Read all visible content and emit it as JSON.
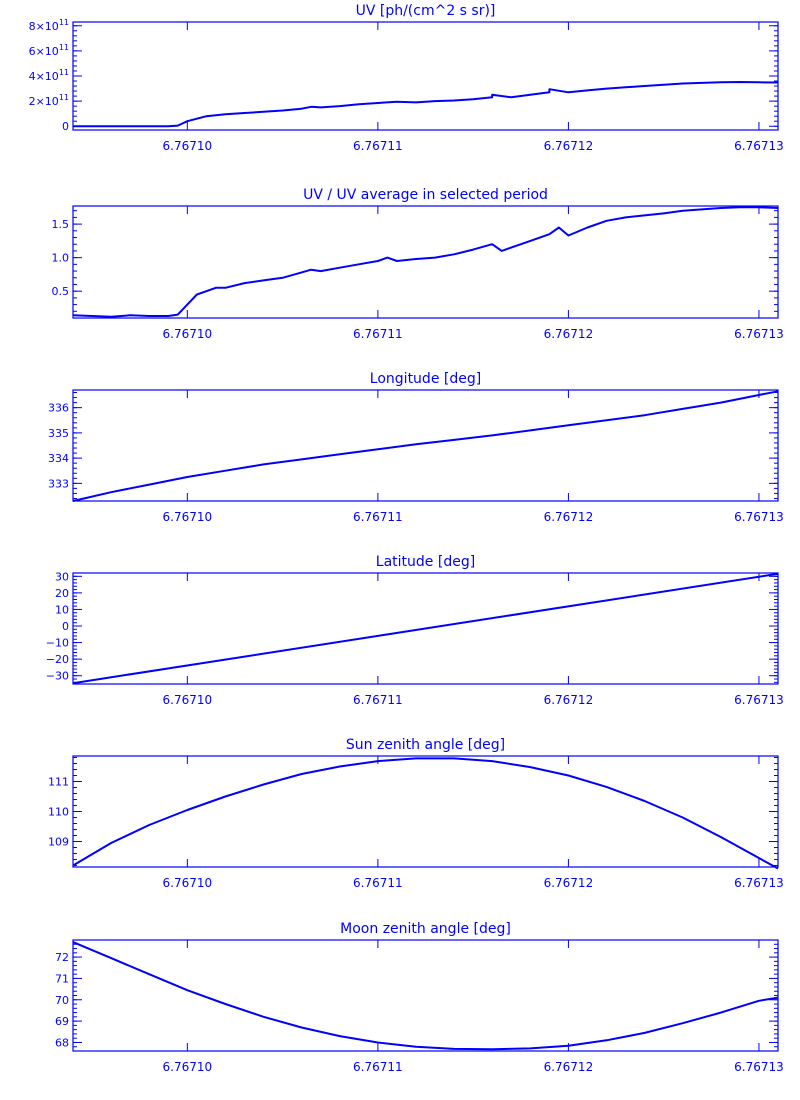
{
  "style": {
    "color": "#0000ff",
    "background": "#ffffff"
  },
  "chart_data": [
    {
      "type": "line",
      "title": "UV [ph/(cm^2 s sr)]",
      "x_ticks": [
        6.7671,
        6.76711,
        6.76712,
        6.76713
      ],
      "x_tick_labels": [
        "6.76710",
        "6.76711",
        "6.76712",
        "6.76713"
      ],
      "xlim": [
        6.767094,
        6.767131
      ],
      "ylim": [
        -30000000000.0,
        830000000000.0
      ],
      "y_ticks": [
        0,
        200000000000.0,
        400000000000.0,
        600000000000.0,
        800000000000.0
      ],
      "y_tick_labels": [
        {
          "base": "0",
          "exp": ""
        },
        {
          "base": "2×10",
          "exp": "11"
        },
        {
          "base": "4×10",
          "exp": "11"
        },
        {
          "base": "6×10",
          "exp": "11"
        },
        {
          "base": "8×10",
          "exp": "11"
        }
      ],
      "series": [
        {
          "x": [
            6.767094,
            6.767096,
            6.767098,
            6.767099,
            6.7670995,
            6.7671,
            6.767101,
            6.767102,
            6.767103,
            6.767104,
            6.767105,
            6.767106,
            6.7671065,
            6.767107,
            6.767108,
            6.767109,
            6.76711,
            6.767111,
            6.767112,
            6.767113,
            6.767114,
            6.767115,
            6.767116,
            6.767116,
            6.767117,
            6.767118,
            6.767119,
            6.767119,
            6.76712,
            6.767121,
            6.767122,
            6.767123,
            6.767124,
            6.767125,
            6.767126,
            6.767127,
            6.767128,
            6.767129,
            6.76713,
            6.767131
          ],
          "y": [
            0,
            0,
            0,
            0,
            5000000000.0,
            40000000000.0,
            80000000000.0,
            95000000000.0,
            105000000000.0,
            115000000000.0,
            125000000000.0,
            140000000000.0,
            155000000000.0,
            150000000000.0,
            160000000000.0,
            175000000000.0,
            185000000000.0,
            195000000000.0,
            190000000000.0,
            200000000000.0,
            205000000000.0,
            215000000000.0,
            230000000000.0,
            250000000000.0,
            230000000000.0,
            250000000000.0,
            270000000000.0,
            295000000000.0,
            270000000000.0,
            285000000000.0,
            300000000000.0,
            310000000000.0,
            320000000000.0,
            330000000000.0,
            340000000000.0,
            345000000000.0,
            350000000000.0,
            352000000000.0,
            350000000000.0,
            348000000000.0
          ]
        }
      ]
    },
    {
      "type": "line",
      "title": "UV / UV average in selected period",
      "x_ticks": [
        6.7671,
        6.76711,
        6.76712,
        6.76713
      ],
      "x_tick_labels": [
        "6.76710",
        "6.76711",
        "6.76712",
        "6.76713"
      ],
      "xlim": [
        6.767094,
        6.767131
      ],
      "ylim": [
        0.1,
        1.77
      ],
      "y_ticks": [
        0.5,
        1.0,
        1.5
      ],
      "y_tick_labels": [
        "0.5",
        "1.0",
        "1.5"
      ],
      "series": [
        {
          "x": [
            6.767094,
            6.767095,
            6.767096,
            6.767097,
            6.767098,
            6.767099,
            6.7670995,
            6.7671,
            6.7671005,
            6.767101,
            6.7671015,
            6.767102,
            6.767103,
            6.767104,
            6.767105,
            6.767106,
            6.7671065,
            6.767107,
            6.767108,
            6.767109,
            6.76711,
            6.7671105,
            6.767111,
            6.767112,
            6.767113,
            6.767114,
            6.767115,
            6.767116,
            6.7671165,
            6.767117,
            6.767118,
            6.767119,
            6.7671195,
            6.76712,
            6.767121,
            6.767122,
            6.767123,
            6.767124,
            6.767125,
            6.767126,
            6.767127,
            6.767128,
            6.767129,
            6.76713,
            6.767131
          ],
          "y": [
            0.14,
            0.13,
            0.12,
            0.14,
            0.13,
            0.13,
            0.15,
            0.3,
            0.45,
            0.5,
            0.55,
            0.55,
            0.62,
            0.66,
            0.7,
            0.78,
            0.82,
            0.8,
            0.85,
            0.9,
            0.95,
            1.0,
            0.95,
            0.98,
            1.0,
            1.05,
            1.12,
            1.2,
            1.1,
            1.15,
            1.25,
            1.35,
            1.45,
            1.33,
            1.45,
            1.55,
            1.6,
            1.63,
            1.66,
            1.7,
            1.72,
            1.74,
            1.75,
            1.75,
            1.74
          ]
        }
      ]
    },
    {
      "type": "line",
      "title": "Longitude [deg]",
      "x_ticks": [
        6.7671,
        6.76711,
        6.76712,
        6.76713
      ],
      "x_tick_labels": [
        "6.76710",
        "6.76711",
        "6.76712",
        "6.76713"
      ],
      "xlim": [
        6.767094,
        6.767131
      ],
      "ylim": [
        332.3,
        336.7
      ],
      "y_ticks": [
        333,
        334,
        335,
        336
      ],
      "y_tick_labels": [
        "333",
        "334",
        "335",
        "336"
      ],
      "series": [
        {
          "x": [
            6.767094,
            6.767096,
            6.767098,
            6.7671,
            6.767102,
            6.767104,
            6.767106,
            6.767108,
            6.76711,
            6.767112,
            6.767114,
            6.767116,
            6.767118,
            6.76712,
            6.767122,
            6.767124,
            6.767126,
            6.767128,
            6.76713,
            6.767131
          ],
          "y": [
            332.3,
            332.65,
            332.95,
            333.25,
            333.5,
            333.75,
            333.95,
            334.15,
            334.35,
            334.55,
            334.72,
            334.9,
            335.1,
            335.3,
            335.5,
            335.7,
            335.95,
            336.2,
            336.5,
            336.65
          ]
        }
      ]
    },
    {
      "type": "line",
      "title": "Latitude [deg]",
      "x_ticks": [
        6.7671,
        6.76711,
        6.76712,
        6.76713
      ],
      "x_tick_labels": [
        "6.76710",
        "6.76711",
        "6.76712",
        "6.76713"
      ],
      "xlim": [
        6.767094,
        6.767131
      ],
      "ylim": [
        -35,
        32
      ],
      "y_ticks": [
        -30,
        -20,
        -10,
        0,
        10,
        20,
        30
      ],
      "y_tick_labels": [
        "−30",
        "−20",
        "−10",
        "0",
        "10",
        "20",
        "30"
      ],
      "series": [
        {
          "x": [
            6.767094,
            6.767131
          ],
          "y": [
            -34.5,
            31.5
          ]
        }
      ]
    },
    {
      "type": "line",
      "title": "Sun zenith angle [deg]",
      "x_ticks": [
        6.7671,
        6.76711,
        6.76712,
        6.76713
      ],
      "x_tick_labels": [
        "6.76710",
        "6.76711",
        "6.76712",
        "6.76713"
      ],
      "xlim": [
        6.767094,
        6.767131
      ],
      "ylim": [
        108.15,
        111.85
      ],
      "y_ticks": [
        109,
        110,
        111
      ],
      "y_tick_labels": [
        "109",
        "110",
        "111"
      ],
      "series": [
        {
          "x": [
            6.767094,
            6.767096,
            6.767098,
            6.7671,
            6.767102,
            6.767104,
            6.767106,
            6.767108,
            6.76711,
            6.767112,
            6.767114,
            6.767116,
            6.767118,
            6.76712,
            6.767122,
            6.767124,
            6.767126,
            6.767128,
            6.76713,
            6.767131
          ],
          "y": [
            108.2,
            108.95,
            109.55,
            110.05,
            110.5,
            110.9,
            111.25,
            111.5,
            111.68,
            111.77,
            111.77,
            111.68,
            111.48,
            111.2,
            110.82,
            110.35,
            109.8,
            109.15,
            108.45,
            108.1
          ]
        }
      ]
    },
    {
      "type": "line",
      "title": "Moon zenith angle [deg]",
      "x_ticks": [
        6.7671,
        6.76711,
        6.76712,
        6.76713
      ],
      "x_tick_labels": [
        "6.76710",
        "6.76711",
        "6.76712",
        "6.76713"
      ],
      "xlim": [
        6.767094,
        6.767131
      ],
      "ylim": [
        67.6,
        72.8
      ],
      "y_ticks": [
        68,
        69,
        70,
        71,
        72
      ],
      "y_tick_labels": [
        "68",
        "69",
        "70",
        "71",
        "72"
      ],
      "series": [
        {
          "x": [
            6.767094,
            6.767096,
            6.767098,
            6.7671,
            6.767102,
            6.767104,
            6.767106,
            6.767108,
            6.76711,
            6.767112,
            6.767114,
            6.767116,
            6.767118,
            6.76712,
            6.767122,
            6.767124,
            6.767126,
            6.767128,
            6.76713,
            6.767131
          ],
          "y": [
            72.7,
            71.95,
            71.2,
            70.45,
            69.8,
            69.2,
            68.7,
            68.3,
            68.0,
            67.8,
            67.7,
            67.68,
            67.72,
            67.85,
            68.1,
            68.45,
            68.9,
            69.4,
            69.95,
            70.1
          ]
        }
      ]
    }
  ]
}
